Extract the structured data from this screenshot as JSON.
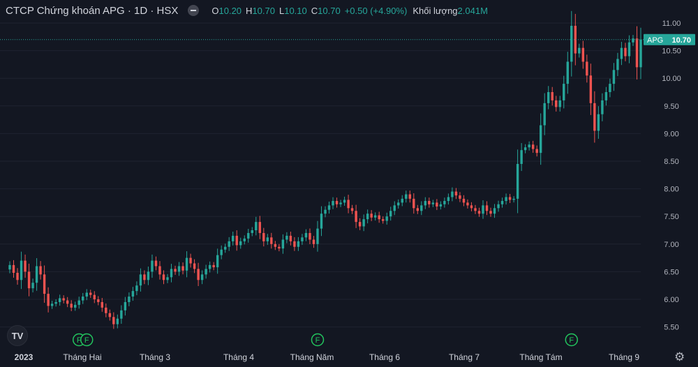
{
  "header": {
    "symbol": "CTCP Chứng khoán APG · 1D · HSX",
    "open_label": "O",
    "open_value": "10.20",
    "high_label": "H",
    "high_value": "10.70",
    "low_label": "L",
    "low_value": "10.10",
    "close_label": "C",
    "close_value": "10.70",
    "change_value": "+0.50 (+4.90%)",
    "volume_label": "Khối lượng",
    "volume_value": "2.041M"
  },
  "logo": {
    "text": "TV"
  },
  "colors": {
    "up": "#26a69a",
    "down": "#ef5350",
    "background": "#131722",
    "grid": "#1f2330",
    "text": "#d1d4dc",
    "event": "#22c55e"
  },
  "chart_data": {
    "type": "candlestick",
    "symbol_tag": "APG",
    "last_price": 10.7,
    "last_price_label": "10.70",
    "ylim": [
      5.25,
      11.15
    ],
    "y_ticks": [
      "11.00",
      "10.50",
      "10.00",
      "9.50",
      "9.00",
      "8.50",
      "8.00",
      "7.50",
      "7.00",
      "6.50",
      "6.00",
      "5.50"
    ],
    "x_ticks": [
      "2023",
      "Tháng Hai",
      "Tháng 3",
      "Tháng 4",
      "Tháng Năm",
      "Tháng 6",
      "Tháng 7",
      "Tháng Tám",
      "Tháng 9"
    ],
    "events": [
      {
        "label": "F",
        "index": 18
      },
      {
        "label": "F",
        "index": 20
      },
      {
        "label": "F",
        "index": 80
      },
      {
        "label": "F",
        "index": 146
      }
    ],
    "closes": [
      6.62,
      6.48,
      6.35,
      6.7,
      6.5,
      6.2,
      6.3,
      6.6,
      6.45,
      6.1,
      5.88,
      5.92,
      5.95,
      6.02,
      5.98,
      5.92,
      5.85,
      5.9,
      5.98,
      6.05,
      6.12,
      6.08,
      6.0,
      5.95,
      5.85,
      5.75,
      5.68,
      5.55,
      5.65,
      5.8,
      5.95,
      6.05,
      6.15,
      6.25,
      6.45,
      6.35,
      6.5,
      6.7,
      6.6,
      6.45,
      6.35,
      6.4,
      6.55,
      6.5,
      6.6,
      6.52,
      6.75,
      6.65,
      6.55,
      6.35,
      6.45,
      6.55,
      6.62,
      6.58,
      6.8,
      6.9,
      6.95,
      7.05,
      7.15,
      6.98,
      7.05,
      7.1,
      7.2,
      7.25,
      7.4,
      7.2,
      7.05,
      7.12,
      7.0,
      6.95,
      6.92,
      7.08,
      7.15,
      7.05,
      6.95,
      7.05,
      7.12,
      7.2,
      7.08,
      7.0,
      7.28,
      7.55,
      7.62,
      7.7,
      7.78,
      7.72,
      7.75,
      7.8,
      7.65,
      7.6,
      7.4,
      7.32,
      7.45,
      7.55,
      7.48,
      7.52,
      7.45,
      7.42,
      7.5,
      7.6,
      7.7,
      7.75,
      7.82,
      7.9,
      7.82,
      7.65,
      7.6,
      7.7,
      7.78,
      7.72,
      7.75,
      7.68,
      7.72,
      7.78,
      7.85,
      7.95,
      7.88,
      7.82,
      7.75,
      7.7,
      7.65,
      7.6,
      7.55,
      7.7,
      7.6,
      7.55,
      7.65,
      7.72,
      7.78,
      7.85,
      7.8,
      7.82,
      8.45,
      8.7,
      8.75,
      8.8,
      8.72,
      8.65,
      9.15,
      9.55,
      9.75,
      9.6,
      9.48,
      9.6,
      9.9,
      10.3,
      10.95,
      10.45,
      10.55,
      10.3,
      10.05,
      9.55,
      9.05,
      9.35,
      9.6,
      9.75,
      9.9,
      10.15,
      10.35,
      10.55,
      10.4,
      10.65,
      10.72,
      10.2,
      10.7
    ],
    "window_start": 12
  }
}
